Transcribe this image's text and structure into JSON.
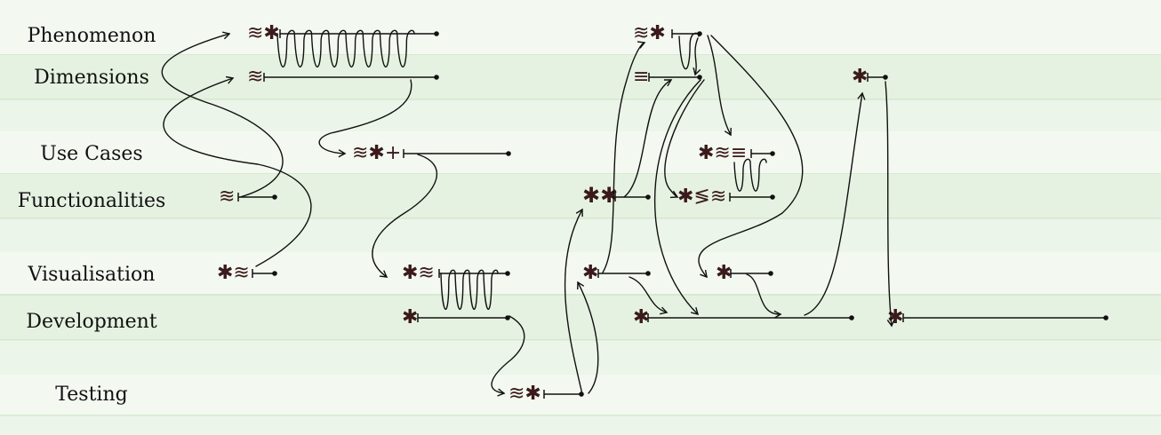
{
  "diagram": {
    "lanes": [
      {
        "id": "phenomenon",
        "label": "Phenomenon"
      },
      {
        "id": "dimensions",
        "label": "Dimensions"
      },
      {
        "id": "usecases",
        "label": "Use Cases"
      },
      {
        "id": "functionalities",
        "label": "Functionalities"
      },
      {
        "id": "visualisation",
        "label": "Visualisation"
      },
      {
        "id": "development",
        "label": "Development"
      },
      {
        "id": "testing",
        "label": "Testing"
      }
    ],
    "colors": {
      "band_light": "#f3f9f1",
      "band_dark": "#e6f2e1",
      "band_edge": "#cfe3c7",
      "line": "#111111",
      "glyph": "#3a1a1a"
    },
    "glyph_legend": {
      "≋": "double-wave",
      "✱": "asterisk",
      "+": "plus",
      "≡": "triple-bar",
      "≶": "chevron"
    },
    "nodes": [
      {
        "id": "n1",
        "glyphs": "≋✱",
        "lane": "phenomenon"
      },
      {
        "id": "n2",
        "glyphs": "≋",
        "lane": "dimensions"
      },
      {
        "id": "n3",
        "glyphs": "≋✱+",
        "lane": "usecases"
      },
      {
        "id": "n4",
        "glyphs": "≋",
        "lane": "functionalities"
      },
      {
        "id": "n5",
        "glyphs": "✱≋",
        "lane": "visualisation"
      },
      {
        "id": "n6",
        "glyphs": "✱≋",
        "lane": "visualisation"
      },
      {
        "id": "n7",
        "glyphs": "✱",
        "lane": "development"
      },
      {
        "id": "n8",
        "glyphs": "≋✱",
        "lane": "testing"
      },
      {
        "id": "n9",
        "glyphs": "✱✱",
        "lane": "functionalities"
      },
      {
        "id": "n10",
        "glyphs": "✱",
        "lane": "visualisation"
      },
      {
        "id": "n11",
        "glyphs": "≋✱",
        "lane": "phenomenon"
      },
      {
        "id": "n12",
        "glyphs": "≡",
        "lane": "dimensions"
      },
      {
        "id": "n13",
        "glyphs": "✱≋≡",
        "lane": "usecases"
      },
      {
        "id": "n14",
        "glyphs": "✱≶≋",
        "lane": "functionalities"
      },
      {
        "id": "n15",
        "glyphs": "✱",
        "lane": "visualisation"
      },
      {
        "id": "n16",
        "glyphs": "✱",
        "lane": "development"
      },
      {
        "id": "n17",
        "glyphs": "✱",
        "lane": "dimensions"
      },
      {
        "id": "n18",
        "glyphs": "✱",
        "lane": "development"
      }
    ]
  }
}
